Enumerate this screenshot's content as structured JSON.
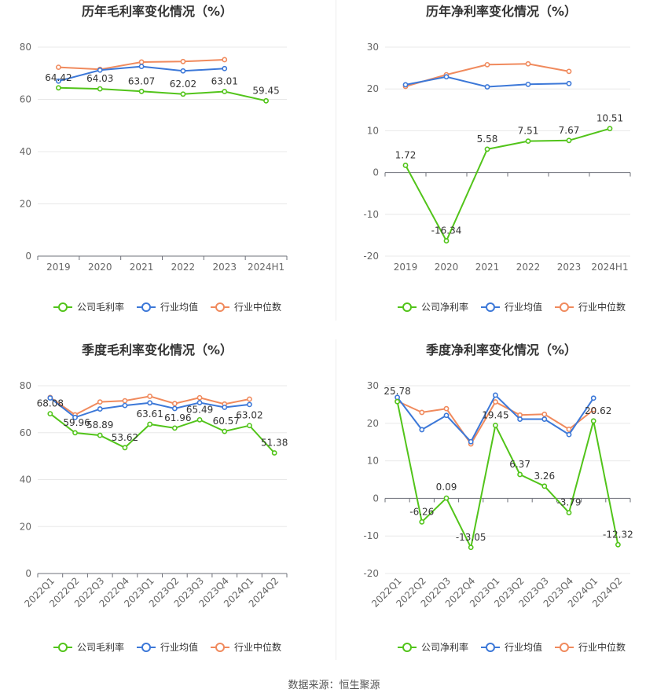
{
  "source": "数据来源：恒生聚源",
  "chart_data": [
    {
      "type": "line",
      "title": "历年毛利率变化情况（%）",
      "categories": [
        "2019",
        "2020",
        "2021",
        "2022",
        "2023",
        "2024H1"
      ],
      "ylim": [
        0,
        80
      ],
      "yticks": [
        0,
        20,
        40,
        60,
        80
      ],
      "grid": true,
      "legend_position": "bottom",
      "series": [
        {
          "name": "公司毛利率",
          "color": "#52c41a",
          "values": [
            64.42,
            64.03,
            63.07,
            62.02,
            63.01,
            59.45
          ],
          "labeled": true
        },
        {
          "name": "行业均值",
          "color": "#3c78d8",
          "values": [
            67.0,
            71.2,
            72.6,
            70.9,
            71.8,
            null
          ],
          "labeled": false
        },
        {
          "name": "行业中位数",
          "color": "#f08a5d",
          "values": [
            72.3,
            71.5,
            74.3,
            74.5,
            75.2,
            null
          ],
          "labeled": false
        }
      ]
    },
    {
      "type": "line",
      "title": "历年净利率变化情况（%）",
      "categories": [
        "2019",
        "2020",
        "2021",
        "2022",
        "2023",
        "2024H1"
      ],
      "ylim": [
        -20,
        30
      ],
      "yticks": [
        -20,
        -10,
        0,
        10,
        20,
        30
      ],
      "grid": true,
      "legend_position": "bottom",
      "series": [
        {
          "name": "公司净利率",
          "color": "#52c41a",
          "values": [
            1.72,
            -16.34,
            5.58,
            7.51,
            7.67,
            10.51
          ],
          "labeled": true
        },
        {
          "name": "行业均值",
          "color": "#3c78d8",
          "values": [
            21.0,
            22.9,
            20.5,
            21.1,
            21.3,
            null
          ],
          "labeled": false
        },
        {
          "name": "行业中位数",
          "color": "#f08a5d",
          "values": [
            20.6,
            23.4,
            25.8,
            26.0,
            24.2,
            null
          ],
          "labeled": false
        }
      ]
    },
    {
      "type": "line",
      "title": "季度毛利率变化情况（%）",
      "categories": [
        "2022Q1",
        "2022Q2",
        "2022Q3",
        "2022Q4",
        "2023Q1",
        "2023Q2",
        "2023Q3",
        "2023Q4",
        "2024Q1",
        "2024Q2"
      ],
      "ylim": [
        0,
        80
      ],
      "yticks": [
        0,
        20,
        40,
        60,
        80
      ],
      "grid": true,
      "legend_position": "bottom",
      "series": [
        {
          "name": "公司毛利率",
          "color": "#52c41a",
          "values": [
            68.08,
            59.96,
            58.89,
            53.62,
            63.61,
            61.96,
            65.49,
            60.57,
            63.02,
            51.38
          ],
          "labeled": true
        },
        {
          "name": "行业均值",
          "color": "#3c78d8",
          "values": [
            74.8,
            66.5,
            70.1,
            71.6,
            72.7,
            70.3,
            72.8,
            70.8,
            72.0,
            null
          ],
          "labeled": false
        },
        {
          "name": "行业中位数",
          "color": "#f08a5d",
          "values": [
            75.0,
            67.6,
            73.1,
            73.6,
            75.5,
            72.4,
            74.9,
            72.2,
            74.3,
            null
          ],
          "labeled": false
        }
      ]
    },
    {
      "type": "line",
      "title": "季度净利率变化情况（%）",
      "categories": [
        "2022Q1",
        "2022Q2",
        "2022Q3",
        "2022Q4",
        "2023Q1",
        "2023Q2",
        "2023Q3",
        "2023Q4",
        "2024Q1",
        "2024Q2"
      ],
      "ylim": [
        -20,
        30
      ],
      "yticks": [
        -20,
        -10,
        0,
        10,
        20,
        30
      ],
      "grid": true,
      "legend_position": "bottom",
      "series": [
        {
          "name": "公司净利率",
          "color": "#52c41a",
          "values": [
            25.78,
            -6.26,
            0.09,
            -13.05,
            19.45,
            6.37,
            3.26,
            -3.79,
            20.62,
            -12.32
          ],
          "labeled": true
        },
        {
          "name": "行业均值",
          "color": "#3c78d8",
          "values": [
            26.9,
            18.3,
            22.1,
            15.1,
            27.5,
            21.1,
            21.1,
            17.0,
            26.7,
            null
          ],
          "labeled": false
        },
        {
          "name": "行业中位数",
          "color": "#f08a5d",
          "values": [
            25.9,
            22.9,
            23.9,
            14.5,
            25.7,
            22.2,
            22.4,
            18.4,
            23.6,
            null
          ],
          "labeled": false
        }
      ]
    }
  ]
}
